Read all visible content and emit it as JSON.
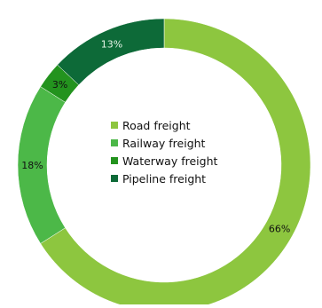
{
  "chart_data": {
    "type": "pie",
    "variant": "donut",
    "title": "",
    "categories": [
      "Road freight",
      "Railway freight",
      "Waterway freight",
      "Pipeline freight"
    ],
    "values": [
      66,
      18,
      3,
      13
    ],
    "unit": "%",
    "labels": [
      "66%",
      "18%",
      "3%",
      "13%"
    ],
    "colors": [
      "#8dc63f",
      "#4cb848",
      "#23931e",
      "#0d6a38"
    ],
    "legend": {
      "placement": "center",
      "entries": [
        "Road freight",
        "Railway freight",
        "Waterway freight",
        "Pipeline freight"
      ]
    },
    "start_angle": "top",
    "direction": "clockwise"
  }
}
